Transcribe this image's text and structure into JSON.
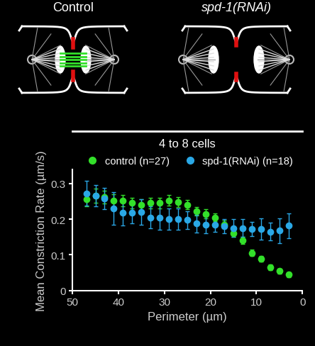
{
  "chart_data": {
    "type": "scatter",
    "subtitle": "4 to 8 cells",
    "annotations": [
      "Control",
      "spd-1(RNAi)"
    ],
    "x_label": "Perimeter (µm)",
    "y_label": "Mean Constriction Rate (µm/s)",
    "x": [
      47,
      45,
      43,
      41,
      39,
      37,
      35,
      33,
      31,
      29,
      27,
      25,
      23,
      21,
      19,
      17,
      15,
      13,
      11,
      9,
      7,
      5,
      3
    ],
    "series": [
      {
        "name": "control (n=27)",
        "color": "#33e02a",
        "marker": "circle",
        "values": [
          0.255,
          0.265,
          0.262,
          0.252,
          0.252,
          0.245,
          0.24,
          0.245,
          0.245,
          0.252,
          0.248,
          0.24,
          0.222,
          0.215,
          0.205,
          0.185,
          0.16,
          0.14,
          0.105,
          0.088,
          0.065,
          0.055,
          0.045
        ],
        "error": [
          0.02,
          0.02,
          0.018,
          0.018,
          0.016,
          0.015,
          0.015,
          0.015,
          0.015,
          0.015,
          0.014,
          0.013,
          0.012,
          0.012,
          0.011,
          0.011,
          0.01,
          0.01,
          0.009,
          0.008,
          0.008,
          0.007,
          0.007
        ]
      },
      {
        "name": "spd-1(RNAi) (n=18)",
        "color": "#2aa8e6",
        "marker": "circle",
        "values": [
          0.272,
          0.265,
          0.258,
          0.23,
          0.218,
          0.218,
          0.22,
          0.205,
          0.205,
          0.2,
          0.2,
          0.198,
          0.188,
          0.185,
          0.185,
          0.18,
          0.175,
          0.175,
          0.172,
          0.172,
          0.165,
          0.168,
          0.182
        ],
        "error": [
          0.035,
          0.03,
          0.03,
          0.045,
          0.035,
          0.03,
          0.035,
          0.03,
          0.035,
          0.03,
          0.03,
          0.025,
          0.025,
          0.025,
          0.02,
          0.02,
          0.025,
          0.025,
          0.02,
          0.03,
          0.025,
          0.035,
          0.035
        ]
      }
    ],
    "xlim": [
      50,
      0
    ],
    "xticks": [
      50,
      40,
      30,
      20,
      10,
      0
    ],
    "ylim": [
      0,
      0.34
    ],
    "yticks": [
      0,
      0.1,
      0.2,
      0.3
    ],
    "legend": "top",
    "grid": false
  }
}
